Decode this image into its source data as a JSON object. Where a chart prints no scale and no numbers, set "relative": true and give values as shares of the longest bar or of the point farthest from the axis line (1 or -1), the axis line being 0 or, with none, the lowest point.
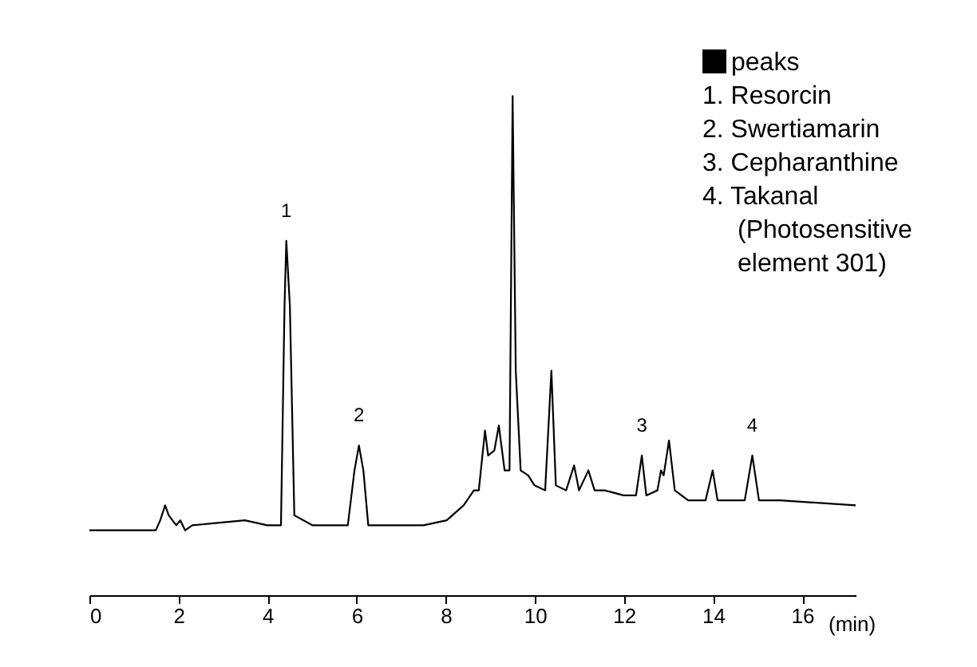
{
  "chart_data": {
    "type": "line",
    "relative": true,
    "xlabel": "(min)",
    "color": "#000000",
    "xlim": [
      0,
      17.2
    ],
    "xticks": [
      0,
      2,
      4,
      6,
      8,
      10,
      12,
      14,
      16
    ],
    "x": [
      0,
      1.49,
      1.59,
      1.7,
      1.78,
      1.95,
      2.04,
      2.15,
      2.31,
      3.49,
      3.99,
      4.3,
      4.38,
      4.42,
      4.5,
      4.6,
      5.01,
      5.8,
      5.95,
      6.05,
      6.15,
      6.26,
      7.5,
      8.02,
      8.4,
      8.63,
      8.74,
      8.88,
      8.95,
      9.09,
      9.19,
      9.32,
      9.43,
      9.5,
      9.57,
      9.68,
      9.85,
      9.99,
      10.23,
      10.37,
      10.47,
      10.7,
      10.88,
      10.99,
      11.2,
      11.34,
      11.57,
      11.99,
      12.27,
      12.4,
      12.5,
      12.75,
      12.83,
      12.89,
      13.01,
      13.14,
      13.44,
      13.83,
      13.99,
      14.1,
      14.71,
      14.88,
      15.03,
      15.51,
      17.2
    ],
    "values": [
      0.13,
      0.13,
      0.15,
      0.18,
      0.16,
      0.14,
      0.15,
      0.13,
      0.14,
      0.15,
      0.14,
      0.14,
      0.58,
      0.71,
      0.58,
      0.16,
      0.14,
      0.14,
      0.25,
      0.3,
      0.25,
      0.14,
      0.14,
      0.15,
      0.18,
      0.21,
      0.21,
      0.33,
      0.28,
      0.29,
      0.34,
      0.25,
      0.25,
      1,
      0.45,
      0.25,
      0.24,
      0.22,
      0.21,
      0.45,
      0.22,
      0.21,
      0.26,
      0.21,
      0.25,
      0.21,
      0.21,
      0.2,
      0.2,
      0.28,
      0.2,
      0.21,
      0.25,
      0.24,
      0.31,
      0.21,
      0.19,
      0.19,
      0.25,
      0.19,
      0.19,
      0.28,
      0.19,
      0.19,
      0.18
    ],
    "annotations": [
      "peaks",
      "1. Resorcin",
      "2. Swertiamarin",
      "3. Cepharanthine",
      "4. Takanal",
      "(Photosensitive",
      "element 301)",
      {
        "text": "1",
        "x": 4.42,
        "y": 0.71
      },
      {
        "text": "2",
        "x": 6.05,
        "y": 0.3
      },
      {
        "text": "3",
        "x": 12.4,
        "y": 0.28
      },
      {
        "text": "4",
        "x": 14.88,
        "y": 0.28
      }
    ]
  }
}
